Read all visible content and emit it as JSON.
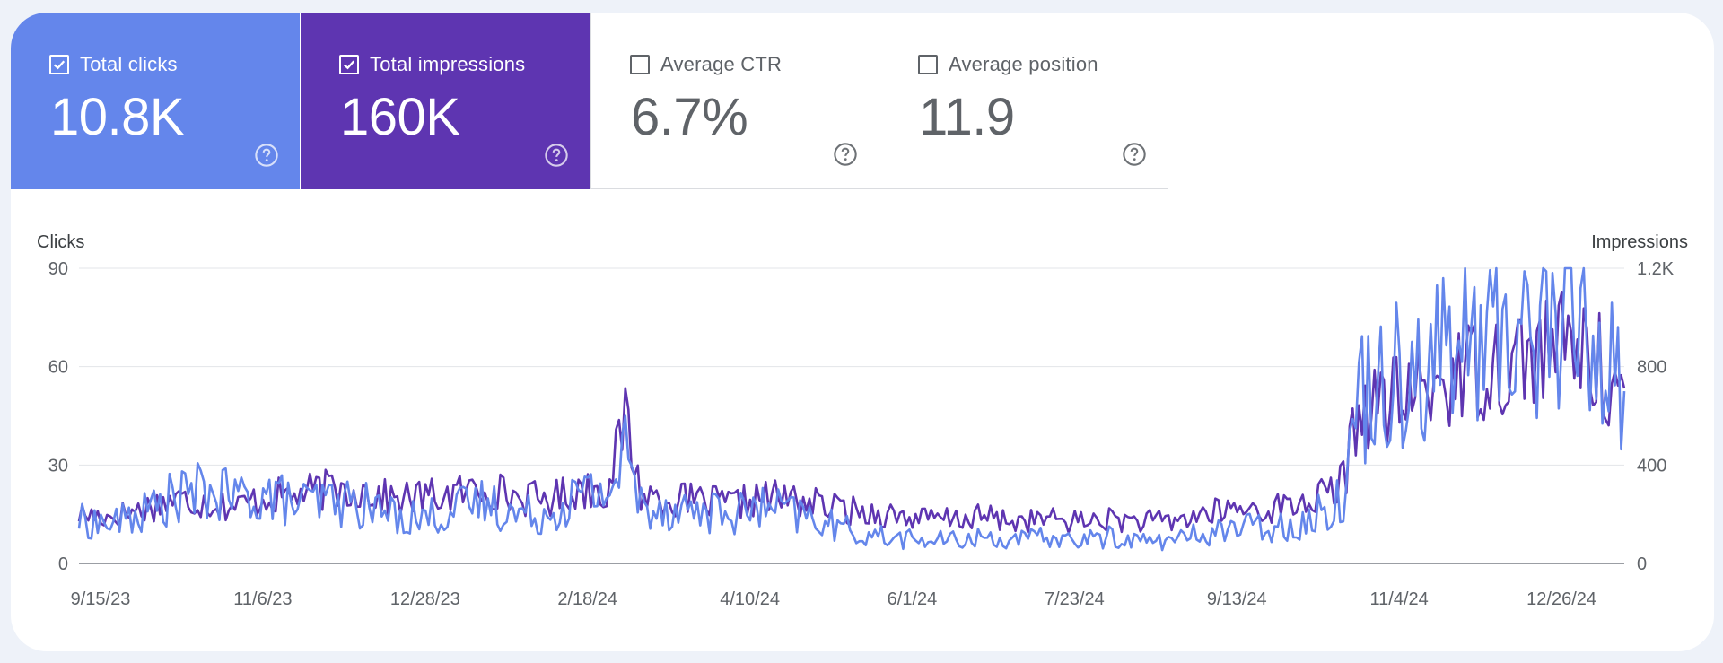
{
  "metrics": [
    {
      "label": "Total clicks",
      "value": "10.8K",
      "checked": true,
      "color": "#6486eb"
    },
    {
      "label": "Total impressions",
      "value": "160K",
      "checked": true,
      "color": "#5e35b1"
    },
    {
      "label": "Average CTR",
      "value": "6.7%",
      "checked": false,
      "color": "#ffffff"
    },
    {
      "label": "Average position",
      "value": "11.9",
      "checked": false,
      "color": "#ffffff"
    }
  ],
  "chart_data": {
    "type": "line",
    "left_axis_label": "Clicks",
    "right_axis_label": "Impressions",
    "left_ylim": [
      0,
      90
    ],
    "right_ylim": [
      0,
      1200
    ],
    "left_ticks": [
      "0",
      "30",
      "60",
      "90"
    ],
    "right_ticks": [
      "0",
      "400",
      "800",
      "1.2K"
    ],
    "x_ticks": [
      "9/15/23",
      "11/6/23",
      "12/28/23",
      "2/18/24",
      "4/10/24",
      "6/1/24",
      "7/23/24",
      "9/13/24",
      "11/4/24",
      "12/26/24"
    ],
    "x_range_days": [
      0,
      495
    ],
    "x_tick_days": [
      0,
      52,
      104,
      156,
      208,
      260,
      312,
      364,
      416,
      468
    ],
    "series": [
      {
        "name": "Total impressions",
        "axis": "right",
        "color": "#5e35b1",
        "days": [
          0,
          10,
          20,
          30,
          40,
          50,
          60,
          70,
          80,
          90,
          100,
          110,
          120,
          130,
          140,
          150,
          160,
          170,
          175,
          180,
          190,
          200,
          210,
          220,
          230,
          240,
          250,
          260,
          270,
          280,
          290,
          300,
          310,
          320,
          330,
          340,
          350,
          360,
          370,
          380,
          390,
          400,
          405,
          410,
          415,
          420,
          430,
          440,
          450,
          460,
          470,
          480,
          490,
          495
        ],
        "values": [
          200,
          190,
          220,
          260,
          250,
          230,
          270,
          280,
          300,
          300,
          260,
          270,
          280,
          310,
          270,
          260,
          300,
          310,
          600,
          280,
          260,
          250,
          240,
          270,
          260,
          230,
          210,
          200,
          180,
          180,
          190,
          170,
          180,
          170,
          180,
          170,
          170,
          200,
          220,
          220,
          240,
          280,
          330,
          640,
          640,
          650,
          700,
          760,
          800,
          840,
          870,
          880,
          760,
          680
        ]
      },
      {
        "name": "Total clicks",
        "axis": "left",
        "color": "#6486eb",
        "days": [
          0,
          10,
          20,
          30,
          40,
          50,
          60,
          70,
          80,
          90,
          100,
          110,
          120,
          130,
          140,
          150,
          160,
          170,
          175,
          180,
          190,
          200,
          210,
          220,
          230,
          240,
          250,
          260,
          270,
          280,
          290,
          300,
          310,
          320,
          330,
          340,
          350,
          360,
          370,
          380,
          390,
          400,
          405,
          410,
          415,
          420,
          430,
          440,
          450,
          460,
          470,
          480,
          490,
          495
        ],
        "values": [
          13,
          12,
          15,
          20,
          22,
          20,
          21,
          18,
          19,
          18,
          15,
          14,
          16,
          19,
          15,
          15,
          21,
          22,
          34,
          18,
          17,
          16,
          15,
          17,
          15,
          12,
          9,
          8,
          7,
          7,
          8,
          7,
          8,
          7,
          8,
          7,
          7,
          9,
          11,
          11,
          12,
          16,
          22,
          50,
          55,
          60,
          62,
          66,
          70,
          72,
          75,
          74,
          62,
          52
        ]
      }
    ]
  }
}
